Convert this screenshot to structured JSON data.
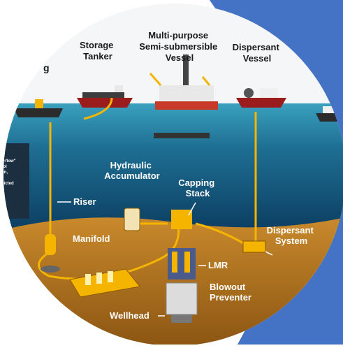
{
  "vessels": {
    "storage_tanker": [
      "Storage",
      "Tanker"
    ],
    "multipurpose": [
      "Multi-purpose",
      "Semi-submersible",
      "Vessel"
    ],
    "dispersant_vessel": [
      "Dispersant",
      "Vessel"
    ]
  },
  "components": {
    "riser": "Riser",
    "manifold": "Manifold",
    "hydraulic_accumulator": [
      "Hydraulic",
      "Accumulator"
    ],
    "capping_stack": [
      "Capping",
      "Stack"
    ],
    "lmr": "LMR",
    "blowout_preventer": [
      "Blowout",
      "Preventer"
    ],
    "wellhead": "Wellhead",
    "dispersant_system": [
      "Dispersant",
      "System"
    ]
  },
  "partial_texts": {
    "top_left_fragment": "g",
    "side_note": [
      "a",
      "d-flow\"",
      "rol",
      "gn,",
      "",
      "picted",
      "y."
    ]
  },
  "colors": {
    "sky": "#f4f6f8",
    "ocean_top": "#2f8fae",
    "ocean_deep": "#0e4e73",
    "seabed": "#b77522",
    "pipe": "#f5b400",
    "blue_accent": "#4472c4",
    "label_dark": "#1a1a1a",
    "label_light": "#ffffff"
  }
}
